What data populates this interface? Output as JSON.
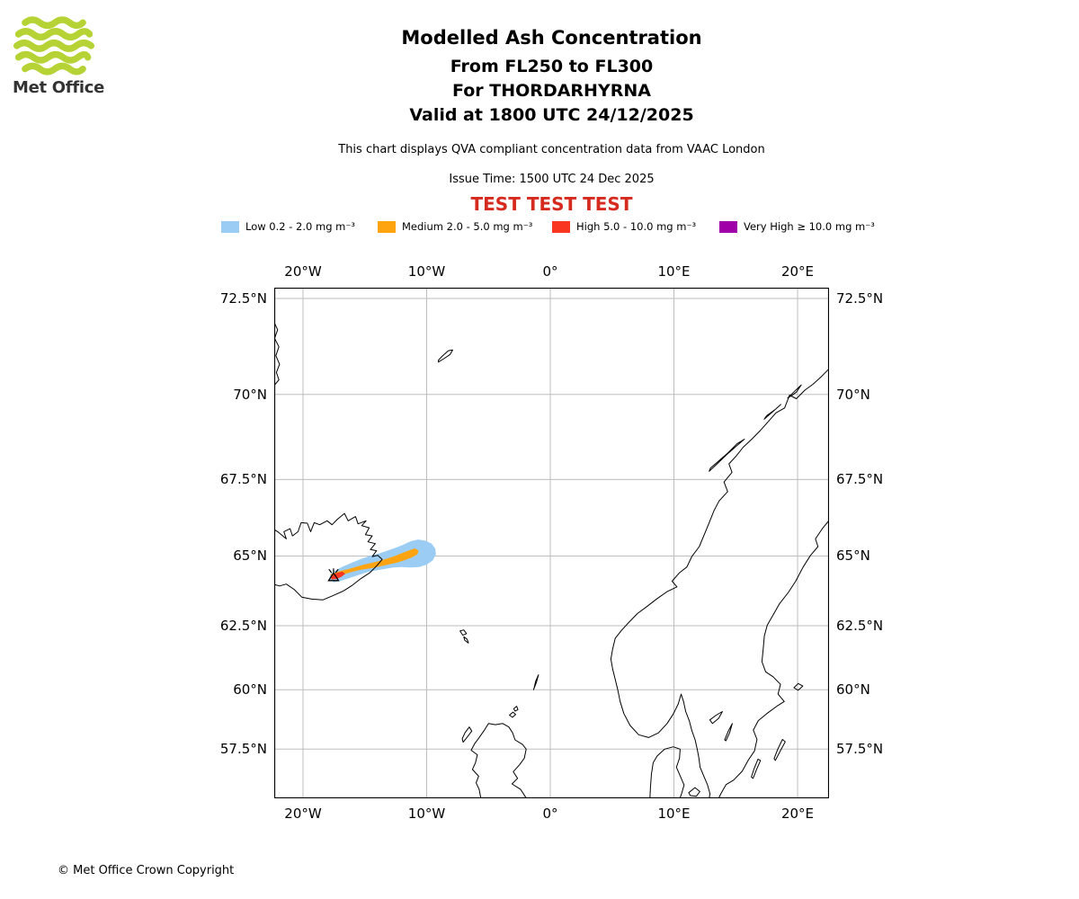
{
  "logo": {
    "brand": "Met Office",
    "color": "#b5d334"
  },
  "header": {
    "title": "Modelled Ash Concentration",
    "subtitle_fl": "From FL250 to FL300",
    "subtitle_volcano": "For THORDARHYRNA",
    "subtitle_valid": "Valid at 1800 UTC 24/12/2025",
    "qva_note": "This chart displays QVA compliant concentration data from VAAC London",
    "issue_time": "Issue Time: 1500 UTC 24 Dec 2025",
    "test_banner": "TEST TEST TEST"
  },
  "legend": {
    "items": [
      {
        "name": "low",
        "label": "Low 0.2 - 2.0 mg m⁻³",
        "color": "#9bcdf4"
      },
      {
        "name": "medium",
        "label": "Medium 2.0 - 5.0 mg m⁻³",
        "color": "#ffa411"
      },
      {
        "name": "high",
        "label": "High 5.0 - 10.0 mg m⁻³",
        "color": "#f93620"
      },
      {
        "name": "very-high",
        "label": "Very High ≥ 10.0 mg m⁻³",
        "color": "#a000a8"
      }
    ]
  },
  "footer": {
    "copyright": "© Met Office Crown Copyright"
  },
  "colors": {
    "test_text": "#d62a1f",
    "grid": "#bdbdbd",
    "coast": "#000000",
    "frame": "#000000"
  },
  "chart_data": {
    "type": "map-contour",
    "projection": "mercator",
    "title": "Modelled Ash Concentration",
    "volcano": {
      "name": "THORDARHYRNA",
      "lon": -17.53,
      "lat": 64.27
    },
    "flight_level_range": "FL250 to FL300",
    "valid_time": "1800 UTC 24/12/2025",
    "issue_time": "1500 UTC 24 Dec 2025",
    "grid": true,
    "lon_range": [
      -22.3,
      22.5
    ],
    "lat_range": [
      55.3,
      72.8
    ],
    "lon_ticks": {
      "values": [
        -20,
        -10,
        0,
        10,
        20
      ],
      "labels": [
        "20°W",
        "10°W",
        "0°",
        "10°E",
        "20°E"
      ]
    },
    "lat_ticks": {
      "values": [
        72.5,
        70.0,
        67.5,
        65.0,
        62.5,
        60.0,
        57.5
      ],
      "labels": [
        "72.5°N",
        "70°N",
        "67.5°N",
        "65°N",
        "62.5°N",
        "60°N",
        "57.5°N"
      ]
    },
    "series": [
      {
        "name": "Low",
        "range_mg_m3": "0.2 - 2.0",
        "color": "#9bcdf4",
        "polygon_lonlat": [
          [
            -17.9,
            64.2
          ],
          [
            -17.5,
            64.08
          ],
          [
            -16.9,
            64.14
          ],
          [
            -16.2,
            64.24
          ],
          [
            -15.5,
            64.34
          ],
          [
            -14.8,
            64.44
          ],
          [
            -14.1,
            64.5
          ],
          [
            -13.4,
            64.55
          ],
          [
            -12.7,
            64.6
          ],
          [
            -12.0,
            64.62
          ],
          [
            -11.3,
            64.6
          ],
          [
            -10.6,
            64.62
          ],
          [
            -10.0,
            64.7
          ],
          [
            -9.5,
            64.85
          ],
          [
            -9.25,
            65.05
          ],
          [
            -9.3,
            65.25
          ],
          [
            -9.6,
            65.42
          ],
          [
            -10.1,
            65.52
          ],
          [
            -10.7,
            65.56
          ],
          [
            -11.3,
            65.5
          ],
          [
            -11.9,
            65.38
          ],
          [
            -12.5,
            65.28
          ],
          [
            -13.2,
            65.18
          ],
          [
            -13.9,
            65.08
          ],
          [
            -14.6,
            65.0
          ],
          [
            -15.3,
            64.9
          ],
          [
            -16.0,
            64.78
          ],
          [
            -16.7,
            64.65
          ],
          [
            -17.3,
            64.52
          ],
          [
            -17.75,
            64.38
          ]
        ]
      },
      {
        "name": "Medium",
        "range_mg_m3": "2.0 - 5.0",
        "color": "#ffa411",
        "polygon_lonlat": [
          [
            -17.7,
            64.28
          ],
          [
            -17.15,
            64.3
          ],
          [
            -16.55,
            64.38
          ],
          [
            -15.95,
            64.46
          ],
          [
            -15.35,
            64.52
          ],
          [
            -14.75,
            64.56
          ],
          [
            -14.15,
            64.6
          ],
          [
            -13.55,
            64.66
          ],
          [
            -12.95,
            64.72
          ],
          [
            -12.35,
            64.78
          ],
          [
            -11.75,
            64.86
          ],
          [
            -11.15,
            64.96
          ],
          [
            -10.75,
            65.06
          ],
          [
            -10.65,
            65.18
          ],
          [
            -10.95,
            65.26
          ],
          [
            -11.5,
            65.18
          ],
          [
            -12.1,
            65.08
          ],
          [
            -12.7,
            64.98
          ],
          [
            -13.3,
            64.9
          ],
          [
            -13.9,
            64.82
          ],
          [
            -14.5,
            64.76
          ],
          [
            -15.1,
            64.7
          ],
          [
            -15.75,
            64.62
          ],
          [
            -16.4,
            64.54
          ],
          [
            -17.0,
            64.48
          ],
          [
            -17.45,
            64.42
          ],
          [
            -17.78,
            64.36
          ]
        ]
      },
      {
        "name": "High",
        "range_mg_m3": "5.0 - 10.0",
        "color": "#f93620",
        "polygon_lonlat": [
          [
            -17.68,
            64.18
          ],
          [
            -17.28,
            64.2
          ],
          [
            -16.88,
            64.28
          ],
          [
            -16.58,
            64.38
          ],
          [
            -16.82,
            64.46
          ],
          [
            -17.22,
            64.42
          ],
          [
            -17.56,
            64.35
          ],
          [
            -17.78,
            64.27
          ]
        ]
      },
      {
        "name": "Very High",
        "range_mg_m3": "≥ 10.0",
        "color": "#a000a8",
        "polygon_lonlat": []
      }
    ]
  }
}
